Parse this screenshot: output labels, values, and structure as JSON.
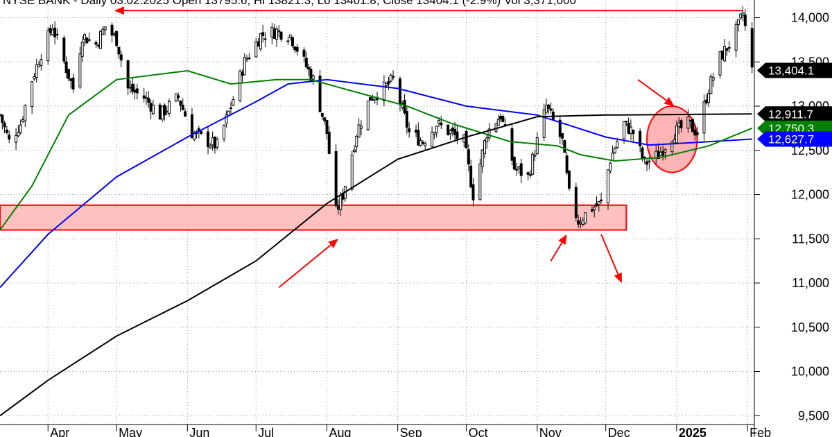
{
  "chart_data": {
    "type": "candlestick",
    "title": "NYSE BANK - Daily 03.02.2025 Open 13795.6, Hi 13821.3, Lo 13401.8, Close 13404.1 (-2.9%) Vol 3,371,000",
    "ylim": [
      9400,
      14200
    ],
    "y_ticks": [
      9500,
      10000,
      10500,
      11000,
      11500,
      12000,
      12500,
      13000,
      13500,
      14000
    ],
    "y_tick_labels": [
      "9,500",
      "10,000",
      "10,500",
      "11,000",
      "11,500",
      "12,000",
      "12,500",
      "13,000",
      "13,500",
      "14,000"
    ],
    "x_range": [
      "2024-03-11",
      "2025-02-04"
    ],
    "months": [
      {
        "label": "Apr",
        "date": "2024-04-01",
        "bold": false
      },
      {
        "label": "May",
        "date": "2024-05-01",
        "bold": false
      },
      {
        "label": "Jun",
        "date": "2024-06-01",
        "bold": false
      },
      {
        "label": "Jul",
        "date": "2024-07-01",
        "bold": false
      },
      {
        "label": "Aug",
        "date": "2024-08-01",
        "bold": false
      },
      {
        "label": "Sep",
        "date": "2024-09-01",
        "bold": false
      },
      {
        "label": "Oct",
        "date": "2024-10-01",
        "bold": false
      },
      {
        "label": "Nov",
        "date": "2024-11-01",
        "bold": false
      },
      {
        "label": "Dec",
        "date": "2024-12-01",
        "bold": false
      },
      {
        "label": "2025",
        "date": "2025-01-01",
        "bold": true
      },
      {
        "label": "Feb",
        "date": "2025-02-01",
        "bold": false
      }
    ],
    "close_path": [
      [
        "2024-03-11",
        12900
      ],
      [
        "2024-03-15",
        12600
      ],
      [
        "2024-03-20",
        12800
      ],
      [
        "2024-03-25",
        13300
      ],
      [
        "2024-03-29",
        13600
      ],
      [
        "2024-04-03",
        13900
      ],
      [
        "2024-04-08",
        13500
      ],
      [
        "2024-04-12",
        13200
      ],
      [
        "2024-04-16",
        13800
      ],
      [
        "2024-04-22",
        13700
      ],
      [
        "2024-04-26",
        13900
      ],
      [
        "2024-05-01",
        13750
      ],
      [
        "2024-05-06",
        13200
      ],
      [
        "2024-05-13",
        13100
      ],
      [
        "2024-05-20",
        12900
      ],
      [
        "2024-05-28",
        13100
      ],
      [
        "2024-06-03",
        12700
      ],
      [
        "2024-06-10",
        12600
      ],
      [
        "2024-06-14",
        12550
      ],
      [
        "2024-06-20",
        13000
      ],
      [
        "2024-06-26",
        13500
      ],
      [
        "2024-07-03",
        13800
      ],
      [
        "2024-07-10",
        13850
      ],
      [
        "2024-07-16",
        13800
      ],
      [
        "2024-07-22",
        13500
      ],
      [
        "2024-07-26",
        13300
      ],
      [
        "2024-08-01",
        12700
      ],
      [
        "2024-08-05",
        11800
      ],
      [
        "2024-08-08",
        12000
      ],
      [
        "2024-08-14",
        12700
      ],
      [
        "2024-08-20",
        13100
      ],
      [
        "2024-08-26",
        13200
      ],
      [
        "2024-08-30",
        13300
      ],
      [
        "2024-09-06",
        12700
      ],
      [
        "2024-09-12",
        12600
      ],
      [
        "2024-09-18",
        12800
      ],
      [
        "2024-09-24",
        12700
      ],
      [
        "2024-09-30",
        12600
      ],
      [
        "2024-10-04",
        12000
      ],
      [
        "2024-10-10",
        12700
      ],
      [
        "2024-10-16",
        12900
      ],
      [
        "2024-10-22",
        12300
      ],
      [
        "2024-10-28",
        12200
      ],
      [
        "2024-11-01",
        12600
      ],
      [
        "2024-11-05",
        13000
      ],
      [
        "2024-11-12",
        12600
      ],
      [
        "2024-11-15",
        12000
      ],
      [
        "2024-11-19",
        11700
      ],
      [
        "2024-11-25",
        11850
      ],
      [
        "2024-11-29",
        11900
      ],
      [
        "2024-12-03",
        12400
      ],
      [
        "2024-12-09",
        12800
      ],
      [
        "2024-12-13",
        12700
      ],
      [
        "2024-12-18",
        12350
      ],
      [
        "2024-12-24",
        12450
      ],
      [
        "2024-12-31",
        12700
      ],
      [
        "2025-01-06",
        12800
      ],
      [
        "2025-01-10",
        12700
      ],
      [
        "2025-01-15",
        13200
      ],
      [
        "2025-01-20",
        13550
      ],
      [
        "2025-01-24",
        13700
      ],
      [
        "2025-01-28",
        13900
      ],
      [
        "2025-01-30",
        14050
      ],
      [
        "2025-02-03",
        13404.1
      ]
    ],
    "series": [
      {
        "name": "",
        "color": "#0000ff",
        "points": [
          [
            "2024-03-11",
            10950
          ],
          [
            "2024-04-01",
            11550
          ],
          [
            "2024-05-01",
            12200
          ],
          [
            "2024-06-01",
            12650
          ],
          [
            "2024-07-01",
            13050
          ],
          [
            "2024-07-15",
            13250
          ],
          [
            "2024-08-01",
            13300
          ],
          [
            "2024-09-01",
            13200
          ],
          [
            "2024-10-01",
            13000
          ],
          [
            "2024-11-01",
            12900
          ],
          [
            "2024-12-01",
            12650
          ],
          [
            "2024-12-20",
            12560
          ],
          [
            "2025-01-10",
            12590
          ],
          [
            "2025-02-03",
            12627.7
          ]
        ]
      },
      {
        "name": "",
        "color": "#008000",
        "points": [
          [
            "2024-03-11",
            11600
          ],
          [
            "2024-03-25",
            12100
          ],
          [
            "2024-04-10",
            12900
          ],
          [
            "2024-05-01",
            13300
          ],
          [
            "2024-06-01",
            13400
          ],
          [
            "2024-06-20",
            13250
          ],
          [
            "2024-07-10",
            13300
          ],
          [
            "2024-07-25",
            13300
          ],
          [
            "2024-08-15",
            13150
          ],
          [
            "2024-09-05",
            13000
          ],
          [
            "2024-09-25",
            12800
          ],
          [
            "2024-10-20",
            12600
          ],
          [
            "2024-11-10",
            12550
          ],
          [
            "2024-11-20",
            12450
          ],
          [
            "2024-12-05",
            12380
          ],
          [
            "2024-12-25",
            12420
          ],
          [
            "2025-01-15",
            12550
          ],
          [
            "2025-02-03",
            12750.3
          ]
        ]
      },
      {
        "name": "",
        "color": "#000000",
        "points": [
          [
            "2024-03-11",
            9500
          ],
          [
            "2024-04-01",
            9900
          ],
          [
            "2024-05-01",
            10400
          ],
          [
            "2024-06-01",
            10800
          ],
          [
            "2024-07-01",
            11250
          ],
          [
            "2024-08-01",
            11900
          ],
          [
            "2024-09-01",
            12400
          ],
          [
            "2024-10-01",
            12650
          ],
          [
            "2024-11-01",
            12880
          ],
          [
            "2024-12-01",
            12900
          ],
          [
            "2025-01-01",
            12905
          ],
          [
            "2025-02-03",
            12911.7
          ]
        ]
      }
    ],
    "price_labels": [
      {
        "value": 13404.1,
        "text": "13,404.1",
        "color": "#000000"
      },
      {
        "value": 12911.7,
        "text": "12,911.7",
        "color": "#000000"
      },
      {
        "value": 12750.3,
        "text": "12,750.3",
        "color": "#008000"
      },
      {
        "value": 12627.7,
        "text": "12,627.7",
        "color": "#0000ff"
      }
    ],
    "support_zone": {
      "x0": "2024-03-11",
      "x1": "2024-12-10",
      "y0": 11600,
      "y1": 11880,
      "fill": "#ffc0c0",
      "stroke": "#ff0000"
    },
    "highlight_ellipse": {
      "x0": "2024-12-19",
      "x1": "2025-01-10",
      "y0": 12250,
      "y1": 13000,
      "fill": "#ffa8a8",
      "stroke": "#ff0000"
    },
    "arrows": [
      {
        "from": [
          "2025-01-30",
          14080
        ],
        "to": [
          "2024-04-30",
          14080
        ]
      },
      {
        "from": [
          "2024-07-11",
          10950
        ],
        "to": [
          "2024-08-06",
          11500
        ]
      },
      {
        "from": [
          "2024-11-07",
          11250
        ],
        "to": [
          "2024-11-14",
          11550
        ]
      },
      {
        "from": [
          "2024-11-29",
          11550
        ],
        "to": [
          "2024-12-08",
          11000
        ]
      },
      {
        "from": [
          "2024-12-15",
          13300
        ],
        "to": [
          "2024-12-31",
          13000
        ]
      }
    ]
  }
}
